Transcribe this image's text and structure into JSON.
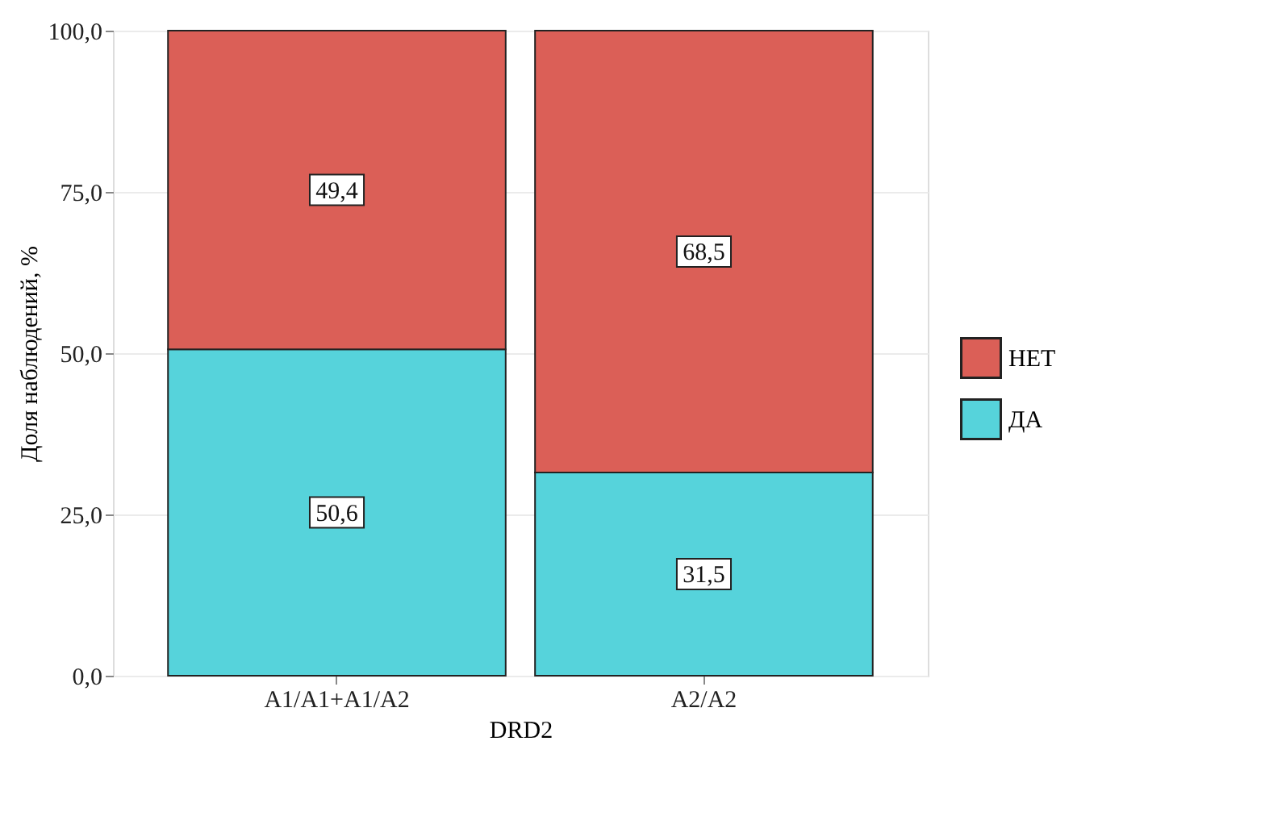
{
  "chart_data": {
    "type": "bar",
    "stacked": true,
    "xlabel": "DRD2",
    "ylabel": "Доля наблюдений, %",
    "categories": [
      "A1/A1+A1/A2",
      "A2/A2"
    ],
    "series": [
      {
        "name": "ДА",
        "color": "#56d3db",
        "values": [
          50.6,
          31.5
        ],
        "value_labels": [
          "50,6",
          "31,5"
        ]
      },
      {
        "name": "НЕТ",
        "color": "#db5f57",
        "values": [
          49.4,
          68.5
        ],
        "value_labels": [
          "49,4",
          "68,5"
        ]
      }
    ],
    "ylim": [
      0,
      100
    ],
    "yticks": [
      {
        "value": 0,
        "label": "0,0"
      },
      {
        "value": 25,
        "label": "25,0"
      },
      {
        "value": 50,
        "label": "50,0"
      },
      {
        "value": 75,
        "label": "75,0"
      },
      {
        "value": 100,
        "label": "100,0"
      }
    ],
    "grid": true,
    "legend": "right"
  }
}
